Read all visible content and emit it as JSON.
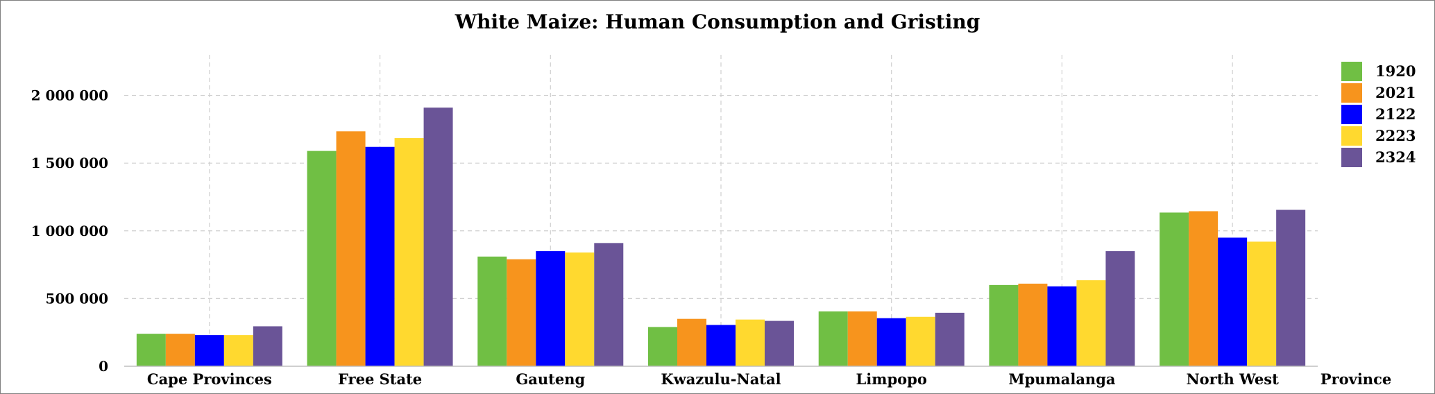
{
  "chart_data": {
    "type": "bar",
    "title": "White Maize: Human Consumption and Gristing",
    "xlabel": "Province",
    "ylabel": "",
    "ylim": [
      0,
      2300000
    ],
    "yticks": [
      0,
      500000,
      1000000,
      1500000,
      2000000
    ],
    "ytick_labels": [
      "0",
      "500 000",
      "1 000 000",
      "1 500 000",
      "2 000 000"
    ],
    "grid": true,
    "legend_position": "top-right",
    "categories": [
      "Cape Provinces",
      "Free State",
      "Gauteng",
      "Kwazulu-Natal",
      "Limpopo",
      "Mpumalanga",
      "North West"
    ],
    "series": [
      {
        "name": "1920",
        "color": "#70BF44",
        "values": [
          240000,
          1590000,
          810000,
          290000,
          405000,
          600000,
          1135000
        ]
      },
      {
        "name": "2021",
        "color": "#F7941D",
        "values": [
          240000,
          1735000,
          790000,
          350000,
          405000,
          610000,
          1145000
        ]
      },
      {
        "name": "2122",
        "color": "#0000FF",
        "values": [
          230000,
          1620000,
          850000,
          305000,
          355000,
          590000,
          950000
        ]
      },
      {
        "name": "2223",
        "color": "#FFD92F",
        "values": [
          230000,
          1685000,
          840000,
          345000,
          365000,
          635000,
          920000
        ]
      },
      {
        "name": "2324",
        "color": "#6A5497",
        "values": [
          295000,
          1910000,
          910000,
          335000,
          395000,
          850000,
          1155000
        ]
      }
    ]
  }
}
